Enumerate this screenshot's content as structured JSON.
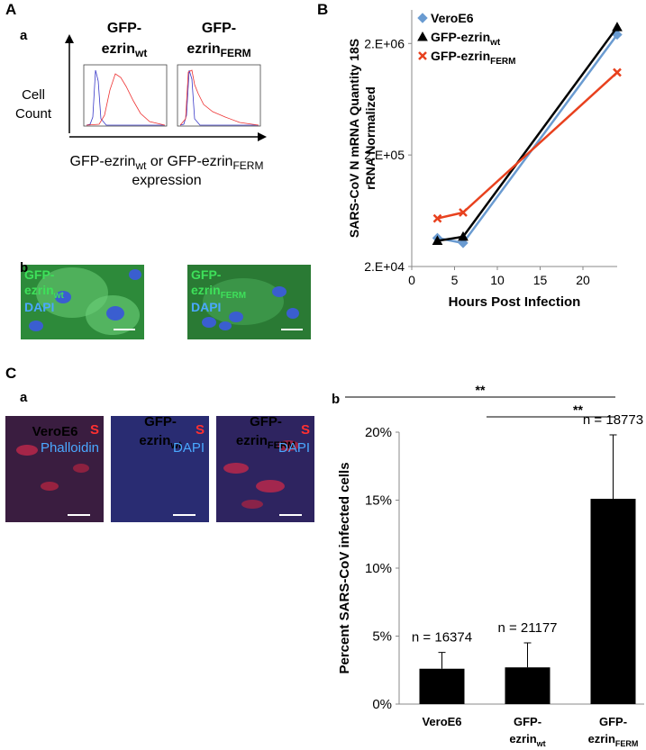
{
  "figure": {
    "panel_A": "A",
    "panel_A_a": "a",
    "panel_A_b": "b",
    "panel_B": "B",
    "panel_C": "C",
    "panel_C_a": "a",
    "panel_C_b": "b",
    "flow": {
      "columns": [
        {
          "line1": "GFP-",
          "line2": "ezrin",
          "sub": "wt"
        },
        {
          "line1": "GFP-",
          "line2": "ezrin",
          "sub": "FERM"
        }
      ],
      "y_label": [
        "Cell",
        "Count"
      ],
      "x_label": {
        "part1": "GFP-ezrin",
        "sub1": "wt",
        "part2": " or GFP-ezrin",
        "sub2": "FERM",
        "line2": "expression"
      }
    },
    "micrographs_A": [
      {
        "line1": "GFP-",
        "line2": "ezrin",
        "sub": "wt",
        "stain": "DAPI"
      },
      {
        "line1": "GFP-",
        "line2": "ezrin",
        "sub": "FERM",
        "stain": "DAPI"
      }
    ],
    "micrographs_C": [
      {
        "title": {
          "line1": "VeroE6"
        },
        "marker": "S",
        "stain": "Phalloidin"
      },
      {
        "title": {
          "line1": "GFP-",
          "line2": "ezrin",
          "sub": "wt"
        },
        "marker": "S",
        "stain": "DAPI"
      },
      {
        "title": {
          "line1": "GFP-",
          "line2": "ezrin",
          "sub": "FERM"
        },
        "marker": "S",
        "stain": "DAPI"
      }
    ]
  },
  "chart_data": [
    {
      "type": "line",
      "y_label": [
        "SARS-CoV N mRNA Quantity 18S",
        "rRNA Normalized"
      ],
      "x_label": "Hours Post Infection",
      "x": [
        3,
        6,
        24
      ],
      "series": [
        {
          "name": "VeroE6",
          "color": "#6a9bd1",
          "marker": "diamond",
          "values": [
            36000,
            32500,
            2400000
          ]
        },
        {
          "name": "GFP-ezrin",
          "name_sub": "wt",
          "color": "#000000",
          "marker": "triangle",
          "values": [
            34000,
            37000,
            2800000
          ]
        },
        {
          "name": "GFP-ezrin",
          "name_sub": "FERM",
          "color": "#e8411e",
          "marker": "x",
          "values": [
            54000,
            61000,
            1100000
          ]
        }
      ],
      "xlim": [
        0,
        24
      ],
      "xticks": [
        0,
        5,
        10,
        15,
        20
      ],
      "ylim": [
        20000,
        4000000
      ],
      "yticks": [
        {
          "value": 20000,
          "label": "2.E+04"
        },
        {
          "value": 200000,
          "label": "2.E+05"
        },
        {
          "value": 2000000,
          "label": "2.E+06"
        }
      ],
      "log_y": true,
      "legend": "top-left"
    },
    {
      "type": "bar",
      "y_label": "Percent SARS-CoV infected cells",
      "categories": [
        {
          "line1": "VeroE6"
        },
        {
          "line1": "GFP-",
          "line2": "ezrin",
          "sub": "wt"
        },
        {
          "line1": "GFP-",
          "line2": "ezrin",
          "sub": "FERM"
        }
      ],
      "values": [
        2.6,
        2.7,
        15.1
      ],
      "errors": [
        1.2,
        1.8,
        4.7
      ],
      "annotations": [
        "n = 16374",
        "n = 21177",
        "n = 18773"
      ],
      "significance": [
        "**",
        "**"
      ],
      "color": "#000000",
      "ylim": [
        0,
        20
      ],
      "yticks": [
        {
          "value": 0,
          "label": "0%"
        },
        {
          "value": 5,
          "label": "5%"
        },
        {
          "value": 10,
          "label": "10%"
        },
        {
          "value": 15,
          "label": "15%"
        },
        {
          "value": 20,
          "label": "20%"
        }
      ]
    }
  ]
}
